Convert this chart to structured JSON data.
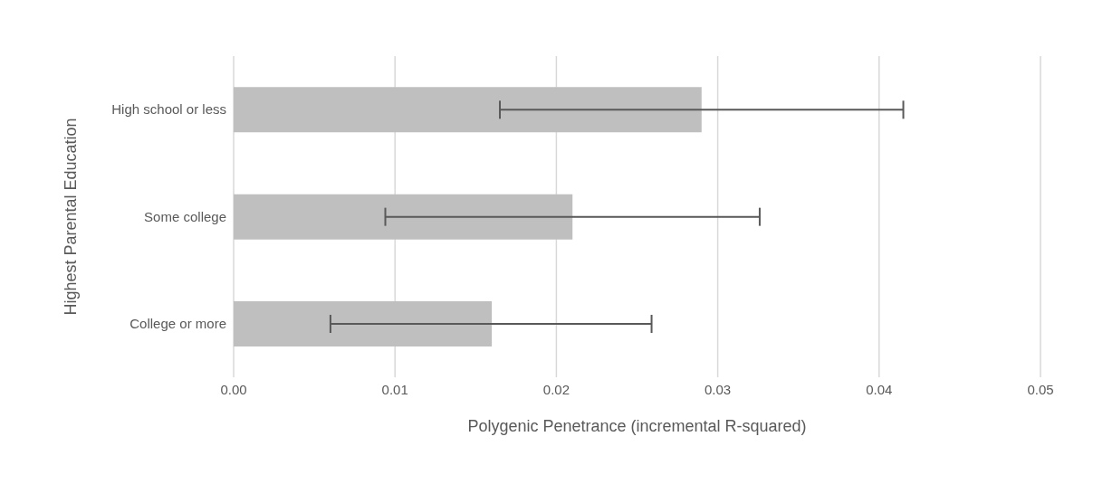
{
  "chart_data": {
    "type": "bar",
    "orientation": "horizontal",
    "xlabel": "Polygenic Penetrance (incremental R-squared)",
    "ylabel": "Highest Parental Education",
    "categories": [
      "High school or less",
      "Some college",
      "College or more"
    ],
    "values": [
      0.029,
      0.021,
      0.016
    ],
    "errors": [
      [
        0.0165,
        0.0415
      ],
      [
        0.0094,
        0.0326
      ],
      [
        0.006,
        0.0259
      ]
    ],
    "color": "#bfbfbf",
    "xlim": [
      0,
      0.05
    ],
    "xticks": [
      {
        "value": 0,
        "label": "0.00"
      },
      {
        "value": 0.01,
        "label": "0.01"
      },
      {
        "value": 0.02,
        "label": "0.02"
      },
      {
        "value": 0.03,
        "label": "0.03"
      },
      {
        "value": 0.04,
        "label": "0.04"
      },
      {
        "value": 0.05,
        "label": "0.05"
      }
    ],
    "grid": "x"
  }
}
